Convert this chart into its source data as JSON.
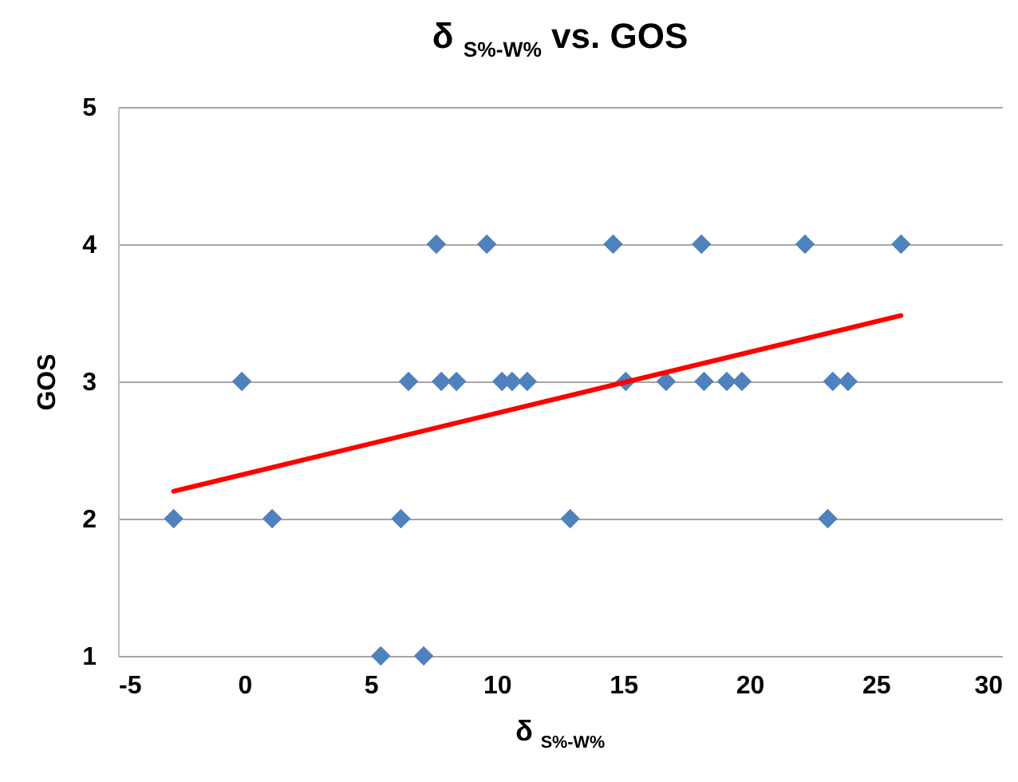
{
  "chart_data": {
    "type": "scatter",
    "title": "δ $_{S%-W%}$ vs. GOS",
    "xlabel": "δ $_{S%-W%}$",
    "ylabel": "GOS",
    "xlim": [
      -5,
      30
    ],
    "xticks": [
      -5,
      0,
      5,
      10,
      15,
      20,
      25,
      30
    ],
    "ylim": [
      1,
      5
    ],
    "yticks": [
      1,
      2,
      3,
      4,
      5
    ],
    "grid": "y",
    "series": [
      {
        "marker": "diamond",
        "color": "#4f81bd",
        "x": [
          -2.8,
          1.1,
          6.2,
          12.9,
          23.1,
          5.4,
          7.1,
          -0.1,
          6.5,
          7.8,
          8.4,
          10.2,
          10.6,
          11.2,
          15.1,
          16.7,
          18.2,
          19.1,
          19.7,
          23.3,
          23.9,
          7.6,
          9.6,
          14.6,
          18.1,
          22.2,
          26.0
        ],
        "values": [
          2,
          2,
          2,
          2,
          2,
          1,
          1,
          3,
          3,
          3,
          3,
          3,
          3,
          3,
          3,
          3,
          3,
          3,
          3,
          3,
          3,
          4,
          4,
          4,
          4,
          4,
          4
        ]
      },
      {
        "type": "line",
        "color": "#ff0000",
        "x": [
          -2.8,
          26.0
        ],
        "values": [
          2.2,
          3.48
        ]
      }
    ]
  }
}
